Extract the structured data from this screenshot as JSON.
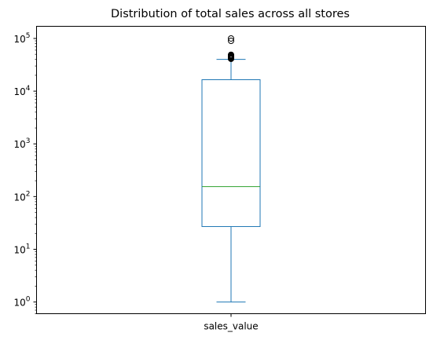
{
  "chart_data": {
    "type": "box",
    "title": "Distribution of total sales across all stores",
    "xlabel": "",
    "ylabel": "",
    "yscale": "log",
    "ylim": [
      0.6,
      170000
    ],
    "categories": [
      "sales_value"
    ],
    "box": {
      "whisker_low": 1,
      "q1": 27,
      "median": 155,
      "q3": 16500,
      "whisker_high": 40000,
      "outliers": [
        41000,
        42000,
        43000,
        44000,
        45000,
        46000,
        47000,
        48000,
        49000,
        90000,
        100000
      ]
    },
    "y_ticks": [
      {
        "value": 1,
        "base": "10",
        "exp": "0"
      },
      {
        "value": 10,
        "base": "10",
        "exp": "1"
      },
      {
        "value": 100,
        "base": "10",
        "exp": "2"
      },
      {
        "value": 1000,
        "base": "10",
        "exp": "3"
      },
      {
        "value": 10000,
        "base": "10",
        "exp": "4"
      },
      {
        "value": 100000,
        "base": "10",
        "exp": "5"
      }
    ],
    "grid": false,
    "colors": {
      "box": "#1f77b4",
      "median": "#2ca02c",
      "outlier": "#000000"
    }
  }
}
